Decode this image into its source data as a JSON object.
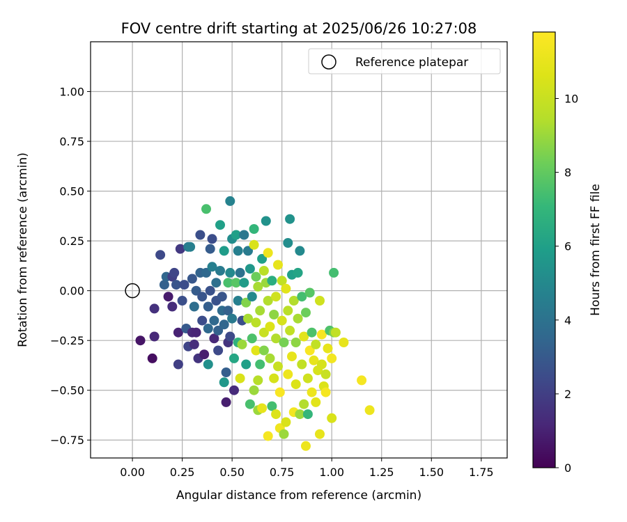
{
  "chart_data": {
    "type": "scatter",
    "title": "FOV centre drift starting at 2025/06/26 10:27:08",
    "xlabel": "Angular distance from reference (arcmin)",
    "ylabel": "Rotation from reference (arcmin)",
    "xlim": [
      -0.21,
      1.88
    ],
    "ylim": [
      -0.84,
      1.25
    ],
    "xticks": [
      "0.00",
      "0.25",
      "0.50",
      "0.75",
      "1.00",
      "1.25",
      "1.50",
      "1.75"
    ],
    "yticks": [
      "−0.75",
      "−0.50",
      "−0.25",
      "0.00",
      "0.25",
      "0.50",
      "0.75",
      "1.00"
    ],
    "grid": true,
    "colormap": "viridis",
    "colorbar": {
      "label": "Hours from first FF file",
      "range": [
        0,
        11.8
      ],
      "ticks": [
        "0",
        "2",
        "4",
        "6",
        "8",
        "10"
      ]
    },
    "reference": {
      "name": "Reference platepar",
      "x": 0.0,
      "y": 0.0,
      "marker": "open-circle"
    },
    "legend": {
      "position": "top-right",
      "entries": [
        "Reference platepar"
      ]
    },
    "series": [
      {
        "points": [
          [
            0.04,
            -0.25,
            0.6
          ],
          [
            0.1,
            -0.34,
            0.4
          ],
          [
            0.11,
            -0.23,
            1.2
          ],
          [
            0.11,
            -0.09,
            1.5
          ],
          [
            0.14,
            0.18,
            2.4
          ],
          [
            0.16,
            0.03,
            3.3
          ],
          [
            0.17,
            0.07,
            3.5
          ],
          [
            0.18,
            -0.03,
            0.8
          ],
          [
            0.2,
            0.07,
            2.0
          ],
          [
            0.2,
            -0.08,
            1.4
          ],
          [
            0.21,
            0.09,
            2.2
          ],
          [
            0.22,
            0.03,
            2.8
          ],
          [
            0.23,
            -0.21,
            1.0
          ],
          [
            0.23,
            -0.37,
            2.0
          ],
          [
            0.24,
            0.21,
            1.8
          ],
          [
            0.25,
            -0.05,
            2.6
          ],
          [
            0.26,
            0.03,
            2.5
          ],
          [
            0.27,
            -0.19,
            3.0
          ],
          [
            0.28,
            0.22,
            4.4
          ],
          [
            0.28,
            -0.28,
            2.2
          ],
          [
            0.29,
            0.22,
            4.6
          ],
          [
            0.3,
            0.06,
            2.9
          ],
          [
            0.3,
            -0.21,
            1.2
          ],
          [
            0.31,
            -0.08,
            3.8
          ],
          [
            0.31,
            -0.27,
            1.4
          ],
          [
            0.32,
            0.0,
            3.1
          ],
          [
            0.32,
            -0.21,
            1.1
          ],
          [
            0.33,
            -0.34,
            1.6
          ],
          [
            0.34,
            0.28,
            2.6
          ],
          [
            0.34,
            0.09,
            3.4
          ],
          [
            0.35,
            -0.03,
            2.8
          ],
          [
            0.35,
            -0.15,
            2.5
          ],
          [
            0.36,
            -0.32,
            0.9
          ],
          [
            0.37,
            0.41,
            7.5
          ],
          [
            0.37,
            0.09,
            3.6
          ],
          [
            0.38,
            -0.08,
            3.2
          ],
          [
            0.38,
            -0.19,
            3.6
          ],
          [
            0.38,
            -0.37,
            5.3
          ],
          [
            0.39,
            0.21,
            3.1
          ],
          [
            0.39,
            0.0,
            2.7
          ],
          [
            0.4,
            0.26,
            2.5
          ],
          [
            0.4,
            0.12,
            4.6
          ],
          [
            0.41,
            -0.15,
            3.6
          ],
          [
            0.41,
            -0.24,
            1.2
          ],
          [
            0.42,
            0.04,
            3.9
          ],
          [
            0.42,
            -0.05,
            2.7
          ],
          [
            0.43,
            -0.2,
            3.3
          ],
          [
            0.43,
            -0.3,
            2.4
          ],
          [
            0.44,
            0.33,
            6.0
          ],
          [
            0.44,
            0.1,
            4.4
          ],
          [
            0.45,
            -0.03,
            2.8
          ],
          [
            0.45,
            -0.1,
            3.7
          ],
          [
            0.46,
            0.2,
            5.8
          ],
          [
            0.46,
            -0.17,
            3.5
          ],
          [
            0.46,
            -0.46,
            5.6
          ],
          [
            0.47,
            -0.56,
            0.9
          ],
          [
            0.47,
            -0.41,
            3.2
          ],
          [
            0.48,
            0.04,
            7.5
          ],
          [
            0.48,
            -0.1,
            3.3
          ],
          [
            0.48,
            -0.26,
            1.6
          ],
          [
            0.49,
            0.45,
            4.7
          ],
          [
            0.49,
            0.09,
            5.0
          ],
          [
            0.49,
            -0.23,
            2.4
          ],
          [
            0.5,
            0.26,
            5.2
          ],
          [
            0.5,
            -0.14,
            4.3
          ],
          [
            0.51,
            -0.34,
            6.3
          ],
          [
            0.51,
            -0.5,
            1.3
          ],
          [
            0.52,
            0.28,
            6.0
          ],
          [
            0.52,
            0.04,
            7.8
          ],
          [
            0.53,
            0.2,
            4.6
          ],
          [
            0.53,
            -0.05,
            4.6
          ],
          [
            0.53,
            -0.26,
            6.8
          ],
          [
            0.54,
            -0.44,
            10.5
          ],
          [
            0.54,
            0.09,
            4.0
          ],
          [
            0.55,
            -0.15,
            2.6
          ],
          [
            0.55,
            -0.27,
            9.0
          ],
          [
            0.56,
            0.28,
            4.2
          ],
          [
            0.56,
            0.04,
            5.8
          ],
          [
            0.57,
            -0.06,
            8.6
          ],
          [
            0.57,
            -0.37,
            6.0
          ],
          [
            0.58,
            0.2,
            4.4
          ],
          [
            0.58,
            -0.14,
            9.2
          ],
          [
            0.59,
            -0.57,
            7.5
          ],
          [
            0.59,
            0.11,
            5.6
          ],
          [
            0.6,
            -0.03,
            5.0
          ],
          [
            0.6,
            -0.24,
            7.6
          ],
          [
            0.61,
            0.31,
            7.0
          ],
          [
            0.61,
            0.23,
            10.5
          ],
          [
            0.61,
            -0.5,
            9.0
          ],
          [
            0.62,
            0.07,
            8.2
          ],
          [
            0.62,
            -0.16,
            9.6
          ],
          [
            0.62,
            -0.3,
            10.8
          ],
          [
            0.63,
            -0.45,
            9.5
          ],
          [
            0.63,
            -0.6,
            9.0
          ],
          [
            0.63,
            0.02,
            9.2
          ],
          [
            0.64,
            -0.1,
            9.2
          ],
          [
            0.64,
            -0.37,
            7.4
          ],
          [
            0.65,
            0.16,
            6.0
          ],
          [
            0.65,
            -0.59,
            11.0
          ],
          [
            0.66,
            0.1,
            9.6
          ],
          [
            0.66,
            -0.21,
            10.0
          ],
          [
            0.66,
            -0.3,
            8.6
          ],
          [
            0.67,
            0.35,
            5.4
          ],
          [
            0.67,
            0.04,
            9.0
          ],
          [
            0.68,
            0.19,
            11.2
          ],
          [
            0.68,
            -0.05,
            9.4
          ],
          [
            0.68,
            -0.73,
            11.5
          ],
          [
            0.69,
            -0.18,
            10.6
          ],
          [
            0.69,
            -0.34,
            9.2
          ],
          [
            0.7,
            -0.58,
            7.4
          ],
          [
            0.7,
            0.05,
            6.6
          ],
          [
            0.71,
            -0.12,
            8.8
          ],
          [
            0.71,
            -0.44,
            10.4
          ],
          [
            0.72,
            -0.03,
            10.2
          ],
          [
            0.72,
            -0.24,
            9.4
          ],
          [
            0.72,
            -0.62,
            10.6
          ],
          [
            0.73,
            0.13,
            11.0
          ],
          [
            0.73,
            -0.38,
            10.0
          ],
          [
            0.74,
            -0.51,
            11.6
          ],
          [
            0.74,
            -0.69,
            11.3
          ],
          [
            0.75,
            0.05,
            9.8
          ],
          [
            0.75,
            -0.15,
            10.4
          ],
          [
            0.76,
            -0.26,
            8.4
          ],
          [
            0.76,
            -0.72,
            9.0
          ],
          [
            0.77,
            0.01,
            10.8
          ],
          [
            0.77,
            -0.66,
            10.5
          ],
          [
            0.78,
            0.24,
            5.2
          ],
          [
            0.78,
            -0.1,
            9.6
          ],
          [
            0.78,
            -0.42,
            11.2
          ],
          [
            0.79,
            0.36,
            5.4
          ],
          [
            0.79,
            -0.2,
            9.8
          ],
          [
            0.8,
            -0.33,
            11.0
          ],
          [
            0.8,
            0.08,
            6.0
          ],
          [
            0.81,
            -0.05,
            9.4
          ],
          [
            0.81,
            -0.61,
            11.4
          ],
          [
            0.82,
            -0.26,
            8.8
          ],
          [
            0.82,
            -0.47,
            10.6
          ],
          [
            0.83,
            0.09,
            6.2
          ],
          [
            0.83,
            -0.14,
            9.2
          ],
          [
            0.84,
            -0.62,
            9.0
          ],
          [
            0.84,
            0.2,
            5.0
          ],
          [
            0.85,
            -0.03,
            7.4
          ],
          [
            0.85,
            -0.37,
            9.8
          ],
          [
            0.86,
            -0.57,
            9.4
          ],
          [
            0.86,
            -0.23,
            10.8
          ],
          [
            0.87,
            -0.78,
            11.2
          ],
          [
            0.87,
            -0.11,
            8.2
          ],
          [
            0.88,
            -0.44,
            10.2
          ],
          [
            0.88,
            -0.62,
            7.0
          ],
          [
            0.89,
            -0.01,
            7.8
          ],
          [
            0.89,
            -0.3,
            11.6
          ],
          [
            0.9,
            -0.51,
            11.2
          ],
          [
            0.9,
            -0.21,
            7.6
          ],
          [
            0.91,
            -0.35,
            11.0
          ],
          [
            0.92,
            -0.56,
            10.8
          ],
          [
            0.92,
            -0.27,
            9.8
          ],
          [
            0.93,
            -0.4,
            10.4
          ],
          [
            0.94,
            -0.05,
            10.2
          ],
          [
            0.94,
            -0.72,
            11.0
          ],
          [
            0.95,
            -0.22,
            11.6
          ],
          [
            0.95,
            -0.37,
            10.4
          ],
          [
            0.96,
            -0.48,
            10.6
          ],
          [
            0.97,
            -0.51,
            11.5
          ],
          [
            0.97,
            -0.42,
            10.0
          ],
          [
            0.98,
            -0.29,
            11.0
          ],
          [
            0.99,
            -0.2,
            7.6
          ],
          [
            1.0,
            -0.64,
            10.5
          ],
          [
            1.0,
            -0.34,
            11.4
          ],
          [
            1.01,
            0.09,
            7.4
          ],
          [
            1.01,
            -0.21,
            8.5
          ],
          [
            1.02,
            -0.21,
            9.8
          ],
          [
            1.06,
            -0.26,
            11.0
          ],
          [
            1.15,
            -0.45,
            11.5
          ],
          [
            1.19,
            -0.6,
            11.2
          ]
        ]
      }
    ]
  }
}
